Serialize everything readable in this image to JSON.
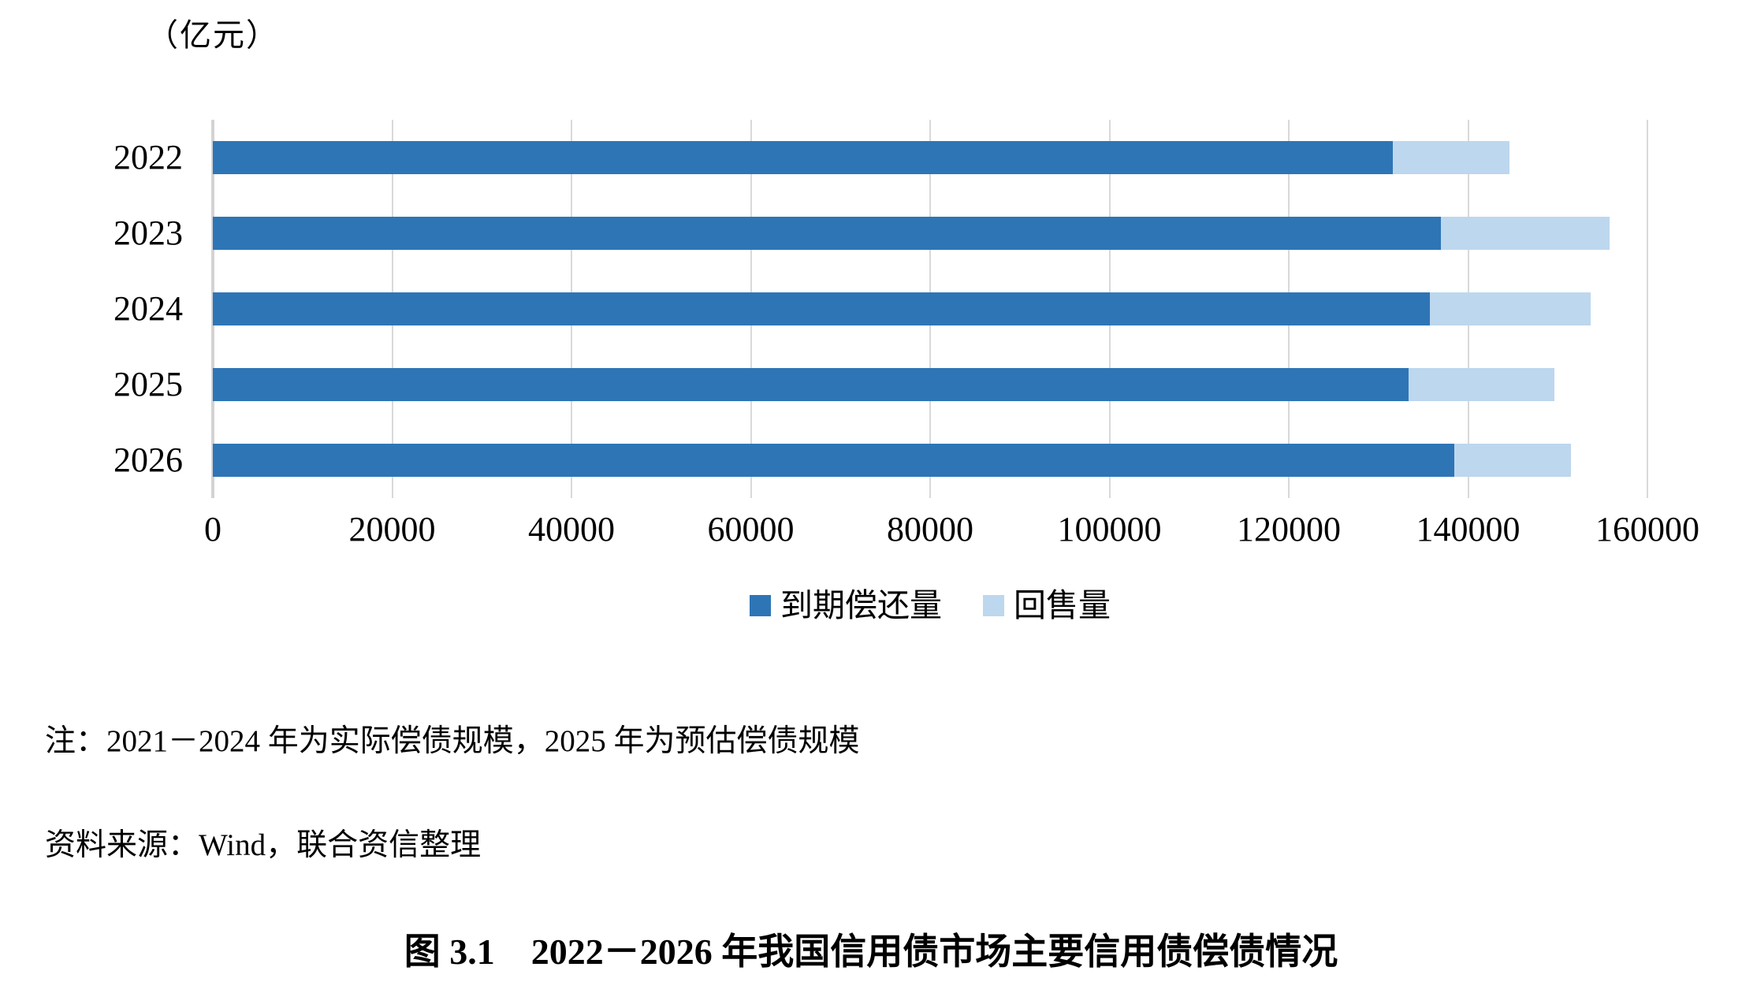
{
  "unit_label": "（亿元）",
  "chart_data": {
    "type": "bar",
    "orientation": "horizontal",
    "stacked": true,
    "title": "图 3.1　2022－2026 年我国信用债市场主要信用债偿债情况",
    "unit": "亿元",
    "categories": [
      "2022",
      "2023",
      "2024",
      "2025",
      "2026"
    ],
    "series": [
      {
        "name": "到期偿还量",
        "color": "#2E75B6",
        "values": [
          131600,
          137000,
          135700,
          133400,
          138500
        ]
      },
      {
        "name": "回售量",
        "color": "#BDD7EE",
        "values": [
          13000,
          18800,
          18000,
          16200,
          13000
        ]
      }
    ],
    "xlim": [
      0,
      160000
    ],
    "x_tick_step": 20000,
    "x_tick_labels": [
      "0",
      "20000",
      "40000",
      "60000",
      "80000",
      "100000",
      "120000",
      "140000",
      "160000"
    ],
    "grid": true,
    "gridline_color": "#D9D9D9",
    "legend_position": "bottom"
  },
  "note": "注：2021－2024 年为实际偿债规模，2025 年为预估偿债规模",
  "source": "资料来源：Wind，联合资信整理",
  "caption": "图 3.1　2022－2026 年我国信用债市场主要信用债偿债情况"
}
